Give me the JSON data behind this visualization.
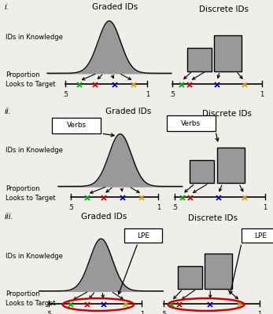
{
  "panel_labels": [
    "i.",
    "ii.",
    "iii."
  ],
  "graded_title": "Graded IDs",
  "discrete_title": "Discrete IDs",
  "left_label1": "IDs in Knowledge",
  "left_label2": "Proportion",
  "left_label3": "Looks to Target",
  "marker_colors": [
    "#00aa00",
    "#cc0000",
    "#0000cc",
    "#ccaa00"
  ],
  "bg_color": "#f0eeeb",
  "box_color": "#999999",
  "line_color": "#111111"
}
